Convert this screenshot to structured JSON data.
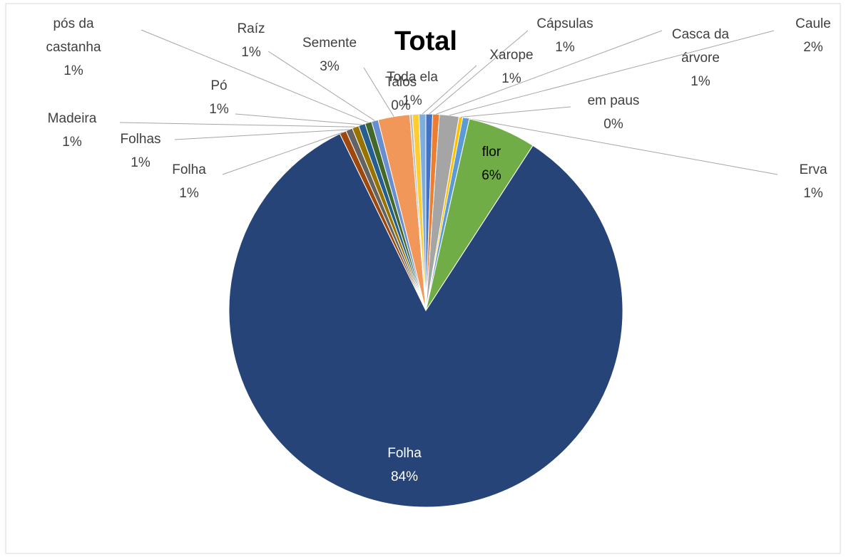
{
  "chart_data": {
    "type": "pie",
    "title": "Total",
    "categories": [
      "Cápsulas",
      "Casca da árvore",
      "Caule",
      "em paus",
      "Erva",
      "flor",
      "Folha",
      "Folha",
      "Folhas",
      "Madeira",
      "Pó",
      "pós da castanha",
      "Raíz",
      "Semente",
      "Talos",
      "Toda ela",
      "Xarope"
    ],
    "values": [
      0.55,
      0.55,
      1.6,
      0.3,
      0.55,
      5.6,
      83.65,
      0.55,
      0.55,
      0.55,
      0.55,
      0.55,
      0.55,
      2.6,
      0.2,
      0.55,
      0.55
    ],
    "value_labels": [
      "1%",
      "1%",
      "2%",
      "0%",
      "1%",
      "6%",
      "84%",
      "1%",
      "1%",
      "1%",
      "1%",
      "1%",
      "1%",
      "3%",
      "0%",
      "1%",
      "1%"
    ],
    "colors": [
      "#4472c4",
      "#ed7d31",
      "#a5a5a5",
      "#ffc000",
      "#5b9bd5",
      "#70ad47",
      "#264478",
      "#9e480e",
      "#636363",
      "#997300",
      "#255e91",
      "#43682b",
      "#698ed0",
      "#f1975a",
      "#b7b7b7",
      "#ffcd33",
      "#7cafdd"
    ]
  }
}
